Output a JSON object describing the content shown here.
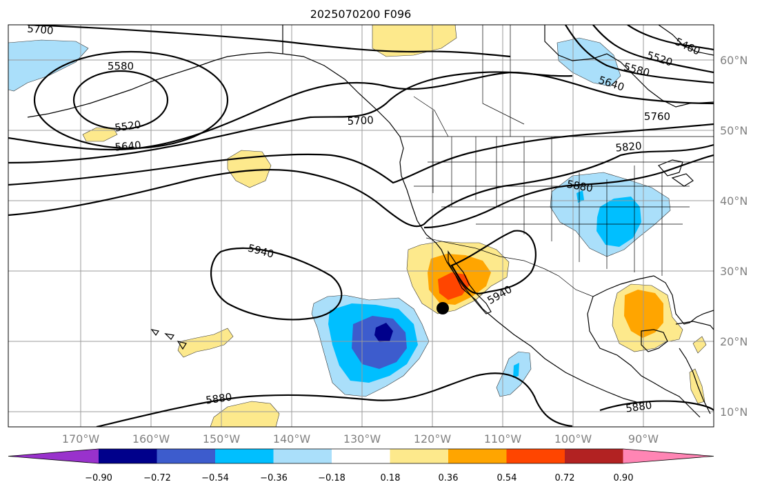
{
  "map": {
    "title": "2025070200 F096",
    "lon_labels": [
      "170°W",
      "160°W",
      "150°W",
      "140°W",
      "130°W",
      "120°W",
      "110°W",
      "100°W",
      "90°W"
    ],
    "lat_labels": [
      "60°N",
      "50°N",
      "40°N",
      "30°N",
      "20°N",
      "10°N"
    ],
    "contour_labels": [
      "5700",
      "5580",
      "5520",
      "5640",
      "5580",
      "5640",
      "5760",
      "5820",
      "5880",
      "5940",
      "5940",
      "5880",
      "5880",
      "5520",
      "5460",
      "5700"
    ],
    "marker": "storm-center-dot"
  },
  "colorbar": {
    "ticks": [
      "−0.90",
      "−0.72",
      "−0.54",
      "−0.36",
      "−0.18",
      "0.18",
      "0.36",
      "0.54",
      "0.72",
      "0.90"
    ],
    "colors": [
      "#9932cc",
      "#00008b",
      "#3d5ccd",
      "#00bfff",
      "#aadffa",
      "#ffffff",
      "#fde98c",
      "#ffa500",
      "#ff4500",
      "#b22222",
      "#ff85b4"
    ]
  },
  "colors": {
    "land_outline": "#000000",
    "grid": "#9a9a9a",
    "tick_label": "#808080"
  }
}
